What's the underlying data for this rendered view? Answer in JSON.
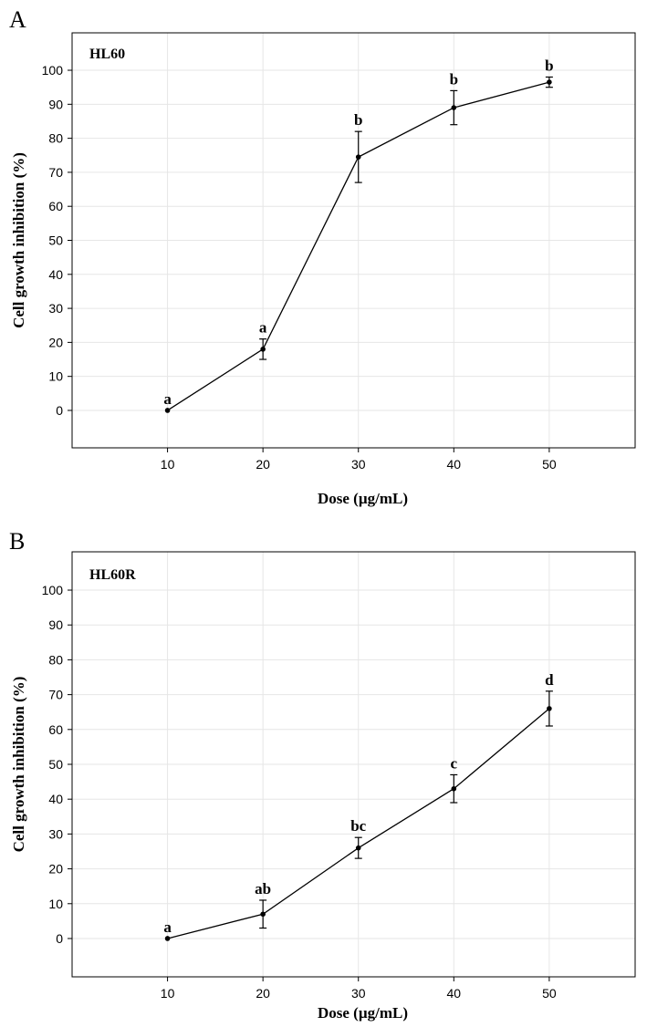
{
  "chart_data": [
    {
      "type": "line",
      "panel_label": "A",
      "title": "HL60",
      "xlabel": "Dose (µg/mL)",
      "ylabel": "Cell growth inhibition (%)",
      "x": [
        10,
        20,
        30,
        40,
        50
      ],
      "xticks": [
        10,
        20,
        30,
        40,
        50
      ],
      "yticks": [
        0,
        10,
        20,
        30,
        40,
        50,
        60,
        70,
        80,
        90,
        100
      ],
      "xlim": [
        0,
        59
      ],
      "ylim": [
        -11,
        111
      ],
      "grid": true,
      "series": [
        {
          "values": [
            0,
            18,
            74.5,
            89,
            96.5
          ],
          "error_low": [
            0,
            15,
            67,
            84,
            95
          ],
          "error_high": [
            0,
            21,
            82,
            94,
            98
          ],
          "labels": [
            "a",
            "a",
            "b",
            "b",
            "b"
          ]
        }
      ]
    },
    {
      "type": "line",
      "panel_label": "B",
      "title": "HL60R",
      "xlabel": "Dose (µg/mL)",
      "ylabel": "Cell growth inhibition (%)",
      "x": [
        10,
        20,
        30,
        40,
        50
      ],
      "xticks": [
        10,
        20,
        30,
        40,
        50
      ],
      "yticks": [
        0,
        10,
        20,
        30,
        40,
        50,
        60,
        70,
        80,
        90,
        100
      ],
      "xlim": [
        0,
        59
      ],
      "ylim": [
        -11,
        111
      ],
      "grid": true,
      "series": [
        {
          "values": [
            0,
            7,
            26,
            43,
            66
          ],
          "error_low": [
            0,
            3,
            23,
            39,
            61
          ],
          "error_high": [
            0,
            11,
            29,
            47,
            71
          ],
          "labels": [
            "a",
            "ab",
            "bc",
            "c",
            "d"
          ]
        }
      ]
    }
  ]
}
